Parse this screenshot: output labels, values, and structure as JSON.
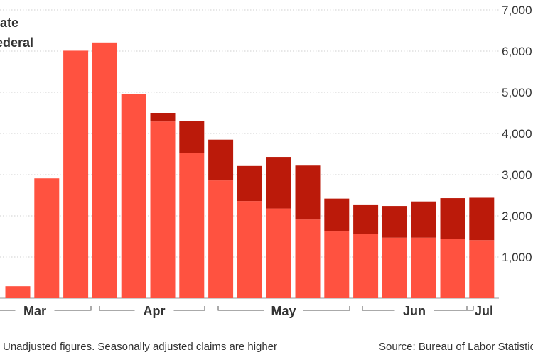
{
  "chart_data": {
    "type": "bar",
    "stacked": true,
    "categories": [
      "",
      "",
      "",
      "",
      "",
      "",
      "",
      "",
      "",
      "",
      "",
      "",
      "",
      "",
      "",
      "",
      ""
    ],
    "series": [
      {
        "name": "State",
        "color": "#ff5240",
        "values": [
          290,
          2910,
          6010,
          6210,
          4960,
          4290,
          3520,
          2860,
          2360,
          2180,
          1910,
          1620,
          1560,
          1470,
          1470,
          1440,
          1410
        ]
      },
      {
        "name": "Federal",
        "color": "#bb1a0a",
        "values": [
          0,
          0,
          0,
          0,
          0,
          210,
          790,
          990,
          850,
          1250,
          1310,
          800,
          700,
          770,
          880,
          990,
          1030
        ]
      }
    ],
    "months": [
      {
        "label": "Mar",
        "from": 0,
        "to": 2
      },
      {
        "label": "Apr",
        "from": 3,
        "to": 6
      },
      {
        "label": "May",
        "from": 7,
        "to": 11
      },
      {
        "label": "Jun",
        "from": 12,
        "to": 15
      },
      {
        "label": "Jul",
        "from": 16,
        "to": 16
      }
    ],
    "yticks": [
      "1,000",
      "2,000",
      "3,000",
      "4,000",
      "5,000",
      "6,000",
      "7,000"
    ],
    "ytick_values": [
      1000,
      2000,
      3000,
      4000,
      5000,
      6000,
      7000
    ],
    "ylim": [
      0,
      7000
    ],
    "grid": true,
    "axis_side": "right",
    "legend_placement": "top-left"
  },
  "legend": {
    "state_label": "tate",
    "federal_label": "ederal"
  },
  "footer": {
    "note": "Unadjusted figures. Seasonally adjusted claims are higher",
    "source": "Source: Bureau of Labor Statistics"
  }
}
